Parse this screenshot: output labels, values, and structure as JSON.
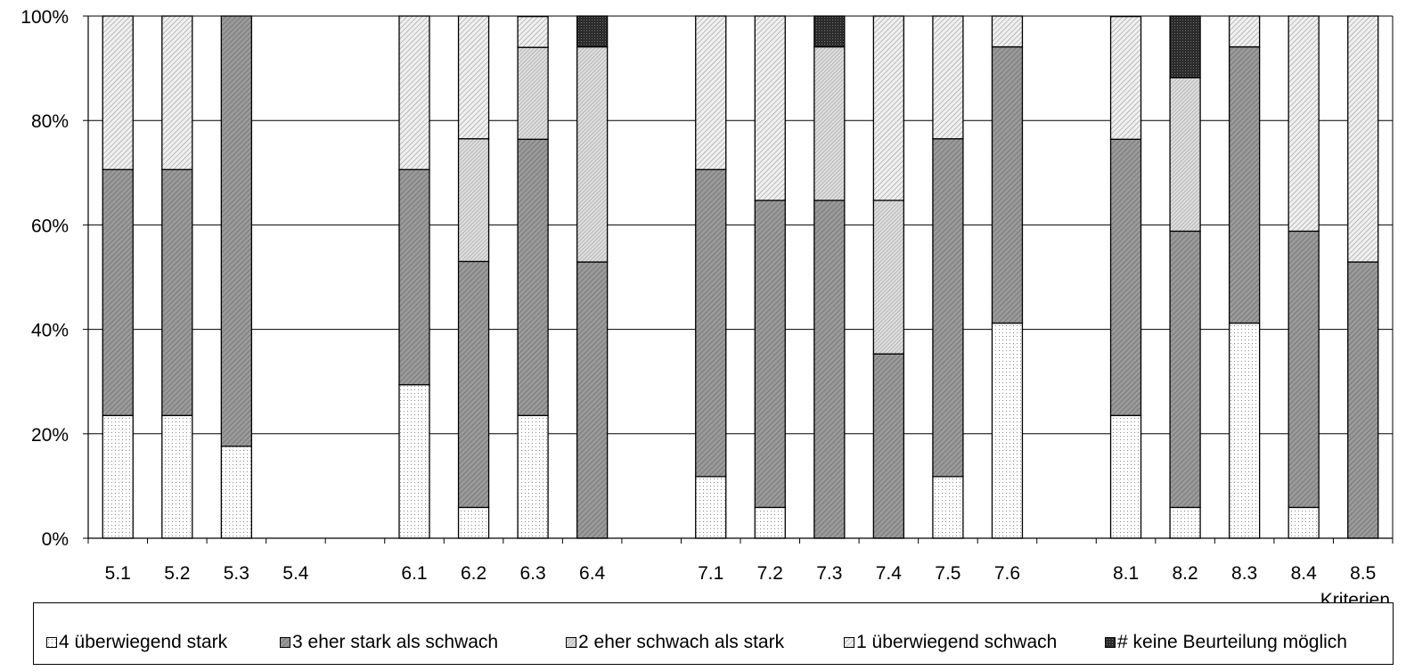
{
  "chart_data": {
    "type": "bar",
    "stacked": true,
    "normalized": true,
    "title": "",
    "xlabel": "Kriterien",
    "ylabel": "",
    "ylim": [
      0,
      100
    ],
    "yticks": [
      "0%",
      "20%",
      "40%",
      "60%",
      "80%",
      "100%"
    ],
    "categories": [
      "5.1",
      "5.2",
      "5.3",
      "5.4",
      "",
      "6.1",
      "6.2",
      "6.3",
      "6.4",
      "",
      "7.1",
      "7.2",
      "7.3",
      "7.4",
      "7.5",
      "7.6",
      "",
      "8.1",
      "8.2",
      "8.3",
      "8.4",
      "8.5"
    ],
    "series": [
      {
        "name": "4 überwiegend stark",
        "pattern": "dots",
        "values": [
          23.5,
          23.5,
          17.6,
          null,
          null,
          29.4,
          5.9,
          23.5,
          0,
          null,
          11.8,
          5.9,
          0,
          0,
          11.8,
          41.2,
          null,
          23.5,
          5.9,
          41.2,
          5.9,
          0
        ]
      },
      {
        "name": "3 eher stark als schwach",
        "pattern": "dark",
        "values": [
          47.1,
          47.1,
          82.4,
          null,
          null,
          41.2,
          47.1,
          52.9,
          52.9,
          null,
          58.8,
          58.8,
          64.7,
          35.3,
          64.7,
          52.9,
          null,
          52.9,
          52.9,
          52.9,
          52.9,
          52.9
        ]
      },
      {
        "name": "2 eher schwach als stark",
        "pattern": "medium",
        "values": [
          0,
          0,
          0,
          null,
          null,
          0,
          23.5,
          17.6,
          41.2,
          null,
          0,
          0,
          29.4,
          29.4,
          0,
          0,
          null,
          0,
          29.4,
          0,
          0,
          0
        ]
      },
      {
        "name": "1 überwiegend schwach",
        "pattern": "light",
        "values": [
          29.4,
          29.4,
          0,
          null,
          null,
          29.4,
          23.5,
          5.9,
          0,
          null,
          29.4,
          35.3,
          0,
          35.3,
          23.5,
          5.9,
          null,
          23.5,
          0,
          5.9,
          41.2,
          47.1
        ]
      },
      {
        "name": "# keine Beurteilung möglich",
        "pattern": "black",
        "values": [
          0,
          0,
          0,
          null,
          null,
          0,
          0,
          0,
          5.9,
          null,
          0,
          0,
          5.9,
          0,
          0,
          0,
          null,
          0,
          11.8,
          0,
          0,
          0
        ]
      }
    ],
    "legend_position": "bottom",
    "grid": true
  }
}
